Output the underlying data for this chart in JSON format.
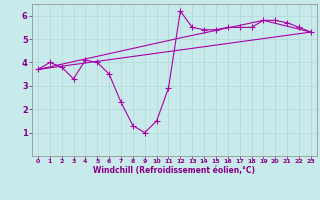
{
  "xlabel": "Windchill (Refroidissement éolien,°C)",
  "bg_color": "#c8eaea",
  "grid_color": "#b0d8d8",
  "line_color": "#aa00aa",
  "xlim": [
    -0.5,
    23.5
  ],
  "ylim": [
    0,
    6.5
  ],
  "xticks": [
    0,
    1,
    2,
    3,
    4,
    5,
    6,
    7,
    8,
    9,
    10,
    11,
    12,
    13,
    14,
    15,
    16,
    17,
    18,
    19,
    20,
    21,
    22,
    23
  ],
  "yticks": [
    1,
    2,
    3,
    4,
    5,
    6
  ],
  "line1_x": [
    0,
    1,
    2,
    3,
    4,
    5,
    6,
    7,
    8,
    9,
    10,
    11,
    12,
    13,
    14,
    15,
    16,
    17,
    18,
    19,
    20,
    21,
    22,
    23
  ],
  "line1_y": [
    3.7,
    4.0,
    3.8,
    3.3,
    4.1,
    4.0,
    3.5,
    2.3,
    1.3,
    1.0,
    1.5,
    2.9,
    6.2,
    5.5,
    5.4,
    5.4,
    5.5,
    5.5,
    5.5,
    5.8,
    5.8,
    5.7,
    5.5,
    5.3
  ],
  "line2_x": [
    0,
    23
  ],
  "line2_y": [
    3.7,
    5.3
  ],
  "line3_x": [
    0,
    12,
    19,
    23
  ],
  "line3_y": [
    3.7,
    5.05,
    5.8,
    5.3
  ],
  "marker": "+"
}
